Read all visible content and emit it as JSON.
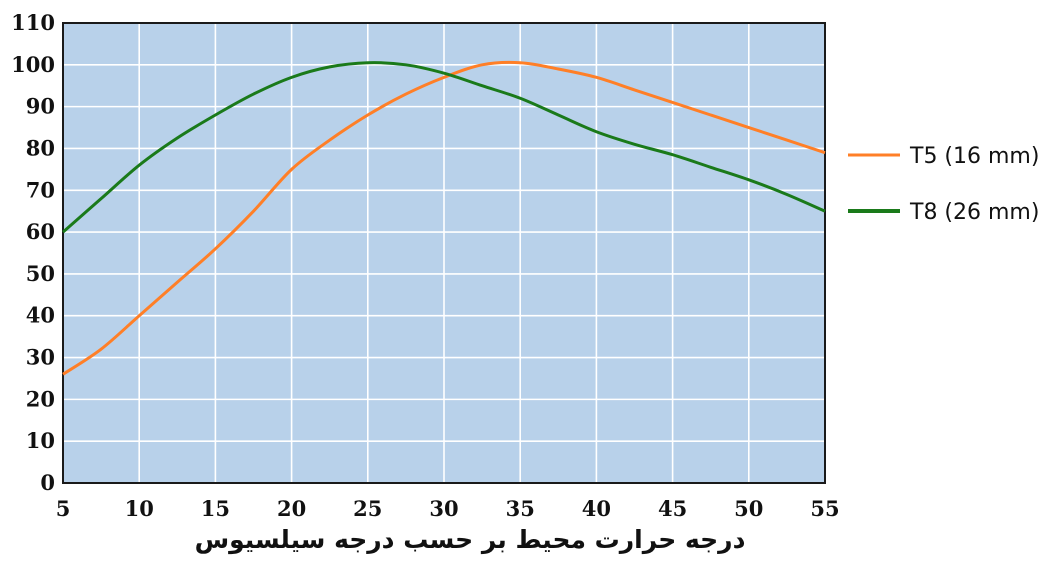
{
  "chart_data": {
    "type": "line",
    "title": "",
    "xlabel": "درجه حرارت محیط بر حسب درجه سیلسیوس",
    "ylabel": "",
    "xlim": [
      5,
      55
    ],
    "ylim": [
      0,
      110
    ],
    "x_ticks": [
      5,
      10,
      15,
      20,
      25,
      30,
      35,
      40,
      45,
      50,
      55
    ],
    "y_ticks": [
      0,
      10,
      20,
      30,
      40,
      50,
      60,
      70,
      80,
      90,
      100,
      110
    ],
    "grid": true,
    "legend_position": "right",
    "plot_background": "#b8d1ea",
    "grid_color": "#ffffff",
    "series": [
      {
        "name": "T5 (16 mm)",
        "color": "#ff7f27",
        "x": [
          5,
          7.5,
          10,
          12.5,
          15,
          17.5,
          20,
          22.5,
          25,
          27.5,
          30,
          32.5,
          35,
          37.5,
          40,
          42.5,
          45,
          47.5,
          50,
          52.5,
          55
        ],
        "y": [
          26,
          32,
          40,
          48,
          56,
          65,
          75,
          82,
          88,
          93,
          97,
          100,
          100.5,
          99,
          97,
          94,
          91,
          88,
          85,
          82,
          79
        ]
      },
      {
        "name": "T8 (26 mm)",
        "color": "#1a7a1a",
        "x": [
          5,
          7.5,
          10,
          12.5,
          15,
          17.5,
          20,
          22.5,
          25,
          27.5,
          30,
          32.5,
          35,
          37.5,
          40,
          42.5,
          45,
          47.5,
          50,
          52.5,
          55
        ],
        "y": [
          60,
          68,
          76,
          82.5,
          88,
          93,
          97,
          99.5,
          100.5,
          100,
          98,
          95,
          92,
          88,
          84,
          81,
          78.5,
          75.5,
          72.5,
          69,
          65
        ]
      }
    ]
  }
}
